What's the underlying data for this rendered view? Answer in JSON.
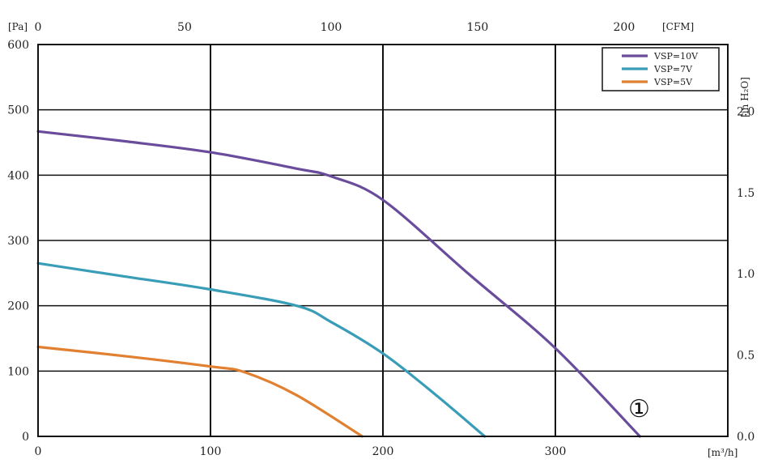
{
  "chart_data": {
    "type": "line",
    "xlabel": "[m³/h]",
    "ylabel": "[Pa]",
    "x2label": "[CFM]",
    "y2label": "[in H₂O]",
    "xlim": [
      0,
      400
    ],
    "ylim": [
      0,
      600
    ],
    "x2lim": [
      0,
      235.4
    ],
    "y2lim": [
      0,
      2.41
    ],
    "x_ticks": [
      "0",
      "100",
      "200",
      "300"
    ],
    "y_ticks": [
      "0",
      "100",
      "200",
      "300",
      "400",
      "500",
      "600"
    ],
    "x2_ticks": [
      "0",
      "50",
      "100",
      "150",
      "200"
    ],
    "y2_ticks": [
      "0.0",
      "0.5",
      "1.0",
      "1.5",
      "2.0"
    ],
    "grid": true,
    "legend_position": "top-right",
    "series": [
      {
        "name": "VSP=10V",
        "color": "#6a4c9c",
        "x": [
          0,
          50,
          100,
          150,
          170,
          200,
          250,
          300,
          349
        ],
        "y": [
          467,
          452,
          435,
          410,
          398,
          362,
          248,
          135,
          0
        ]
      },
      {
        "name": "VSP=7V",
        "color": "#3a9db8",
        "x": [
          0,
          50,
          100,
          150,
          170,
          200,
          230,
          259
        ],
        "y": [
          265,
          245,
          225,
          200,
          175,
          127,
          65,
          0
        ]
      },
      {
        "name": "VSP=5V",
        "color": "#e08030",
        "x": [
          0,
          50,
          100,
          120,
          150,
          188
        ],
        "y": [
          137,
          123,
          107,
          98,
          63,
          0
        ]
      }
    ],
    "annotations": [
      "①"
    ]
  }
}
